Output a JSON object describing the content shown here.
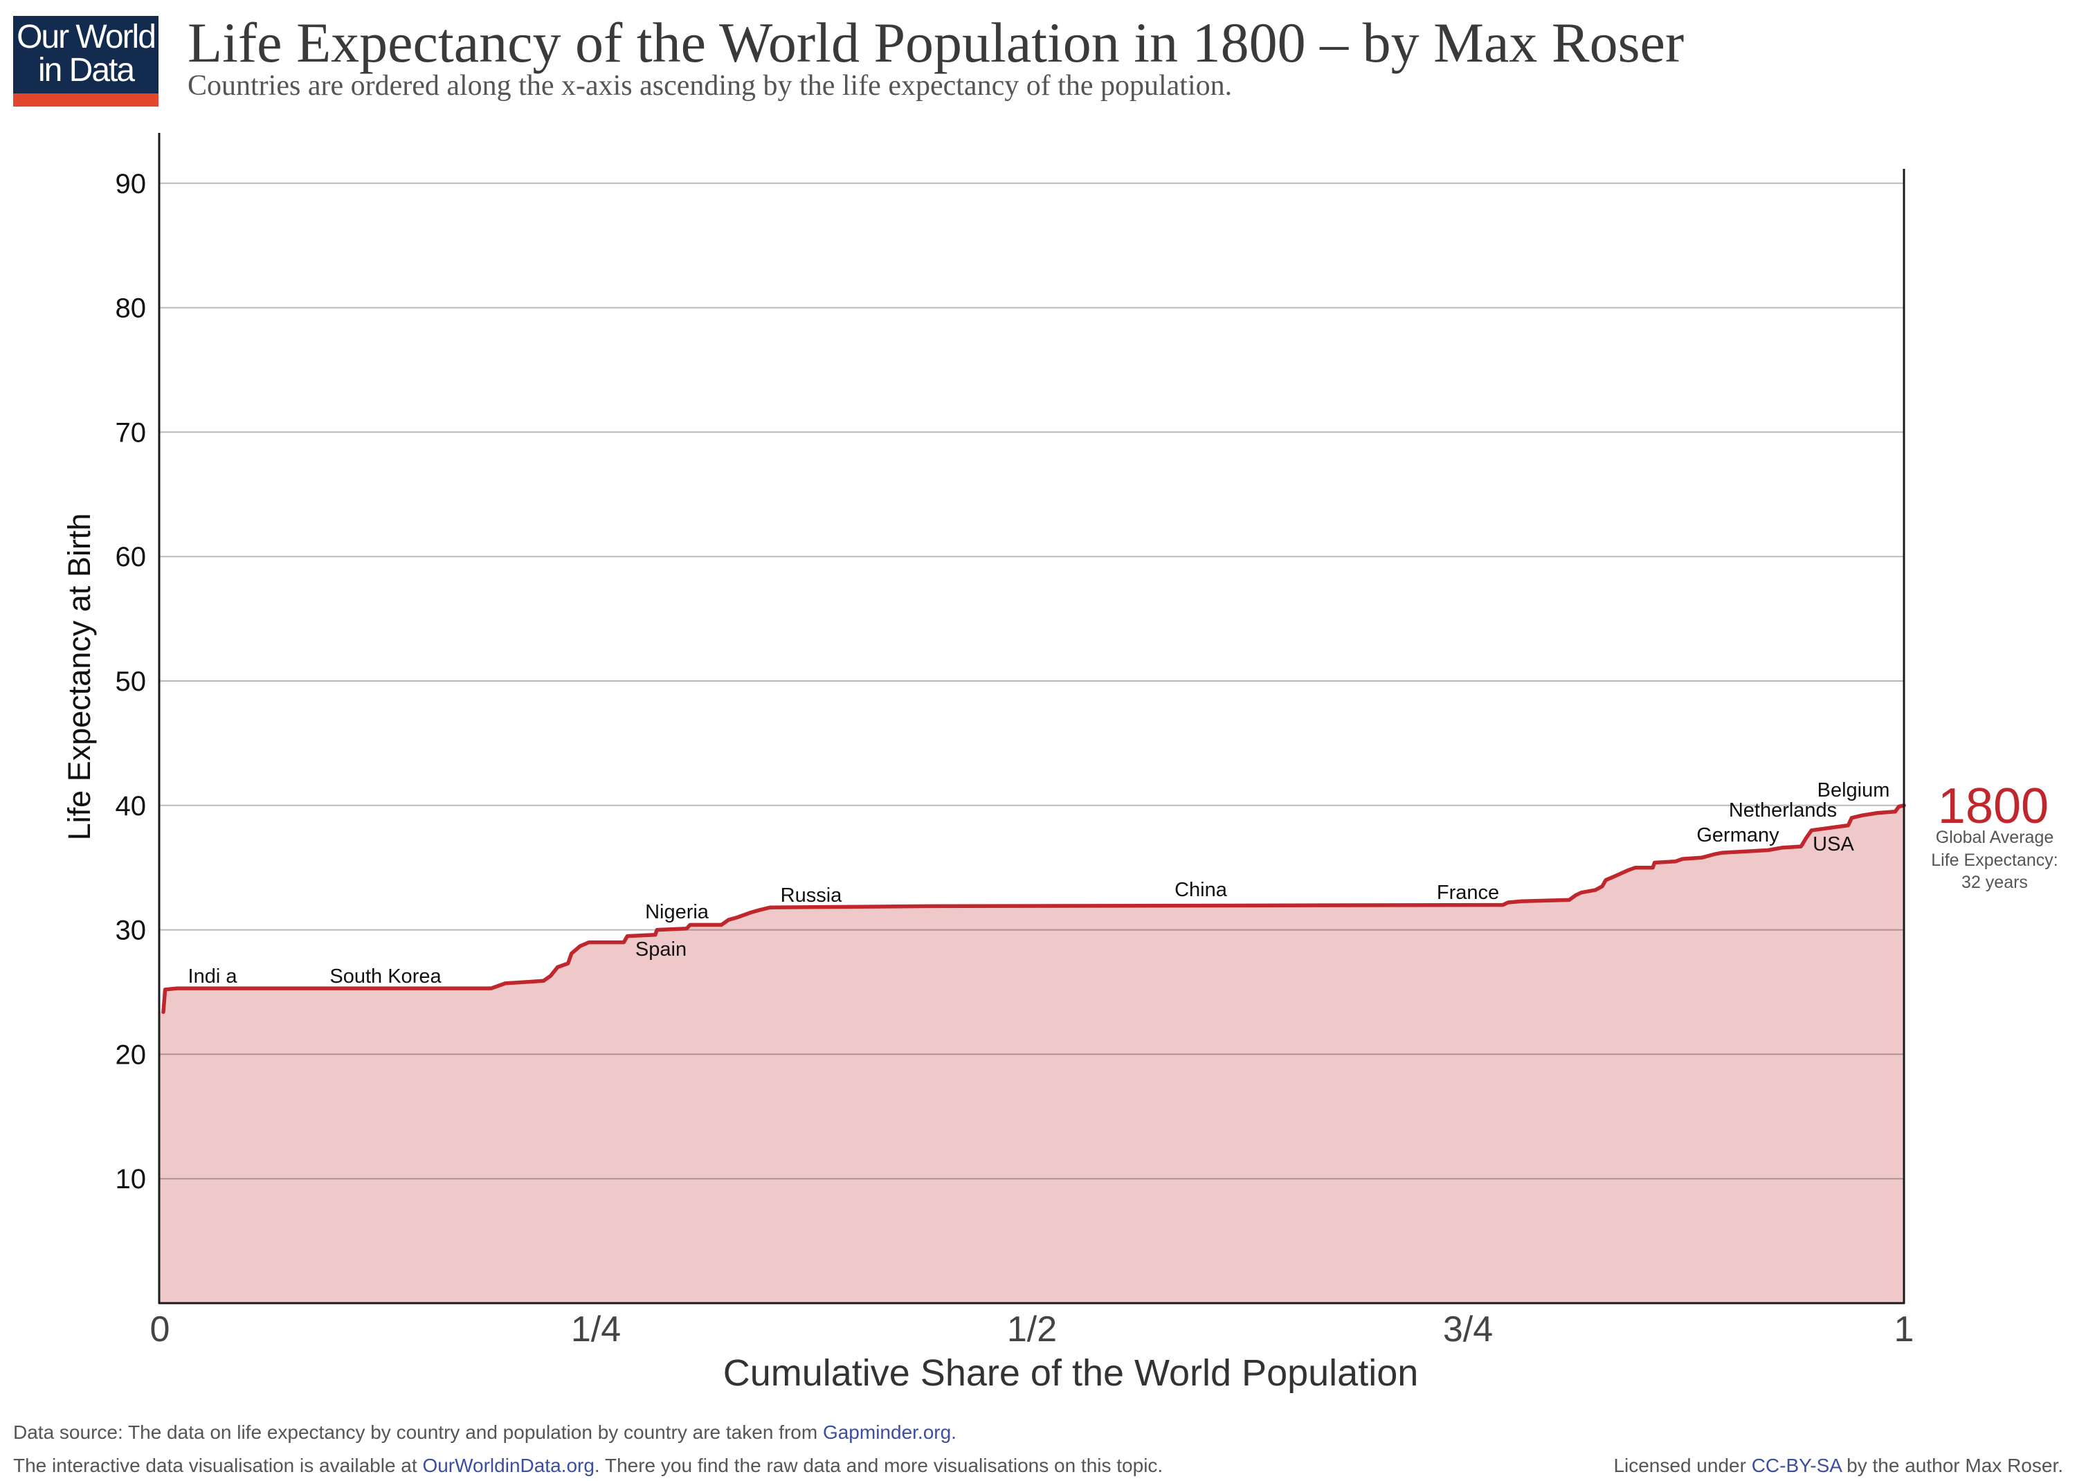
{
  "logo": {
    "line1": "Our World",
    "line2": "in Data"
  },
  "chart_data": {
    "type": "area",
    "title": "Life Expectancy of the World Population in 1800 – by Max Roser",
    "subtitle": "Countries are ordered along the x-axis ascending by the life expectancy of the population.",
    "xlabel": "Cumulative Share of the World Population",
    "ylabel": "Life Expectancy at Birth",
    "xlim": [
      0,
      1
    ],
    "ylim": [
      0,
      94
    ],
    "x_ticks": [
      "0",
      "1/4",
      "1/2",
      "3/4",
      "1"
    ],
    "x_tick_values": [
      0,
      0.25,
      0.5,
      0.75,
      1
    ],
    "y_ticks": [
      10,
      20,
      30,
      40,
      50,
      60,
      70,
      80,
      90
    ],
    "grid": true,
    "series": [
      {
        "name": "1800",
        "x": [
          0.002,
          0.003,
          0.01,
          0.19,
          0.194,
          0.198,
          0.22,
          0.224,
          0.228,
          0.234,
          0.236,
          0.241,
          0.246,
          0.266,
          0.268,
          0.284,
          0.285,
          0.302,
          0.304,
          0.322,
          0.326,
          0.331,
          0.339,
          0.344,
          0.35,
          0.44,
          0.77,
          0.773,
          0.781,
          0.808,
          0.812,
          0.815,
          0.823,
          0.827,
          0.829,
          0.834,
          0.842,
          0.846,
          0.856,
          0.857,
          0.869,
          0.873,
          0.884,
          0.892,
          0.896,
          0.922,
          0.93,
          0.941,
          0.944,
          0.947,
          0.968,
          0.97,
          0.976,
          0.985,
          0.995,
          0.997,
          1.0
        ],
        "y": [
          23.4,
          25.2,
          25.3,
          25.3,
          25.5,
          25.7,
          25.9,
          26.3,
          27.0,
          27.3,
          28.1,
          28.7,
          29.0,
          29.0,
          29.5,
          29.6,
          30.0,
          30.1,
          30.4,
          30.4,
          30.8,
          31.0,
          31.4,
          31.6,
          31.8,
          31.9,
          32.0,
          32.2,
          32.3,
          32.4,
          32.8,
          33.0,
          33.2,
          33.5,
          34.0,
          34.3,
          34.8,
          35.0,
          35.0,
          35.4,
          35.5,
          35.7,
          35.8,
          36.1,
          36.2,
          36.4,
          36.6,
          36.7,
          37.4,
          38.0,
          38.4,
          39.0,
          39.2,
          39.4,
          39.5,
          39.9,
          40.0
        ]
      }
    ],
    "annotations": [
      "Indi a",
      "South Korea",
      "Nigeria",
      "Spain",
      "Russia",
      "China",
      "France",
      "Germany",
      "Netherlands",
      "Belgium",
      "USA"
    ],
    "global_average": [
      "Global Average",
      "Life Expectancy:",
      "32 years"
    ]
  },
  "footer": {
    "source_text": "Data source: The data on life expectancy by country and population by country are taken from ",
    "source_link": "Gapminder.org.",
    "interactive_text": "The interactive data visualisation is available at ",
    "interactive_link": "OurWorldinData.org",
    "interactive_suffix": ". There you find the raw data and more visualisations on this topic.",
    "license_prefix": "Licensed under ",
    "license_link": "CC-BY-SA",
    "license_suffix": " by the author Max Roser."
  },
  "colors": {
    "series": "#c0272d",
    "fill": "#efc9ca",
    "logo_bg": "#132b4f",
    "logo_accent": "#e2472d",
    "link": "#3c4ea0"
  }
}
